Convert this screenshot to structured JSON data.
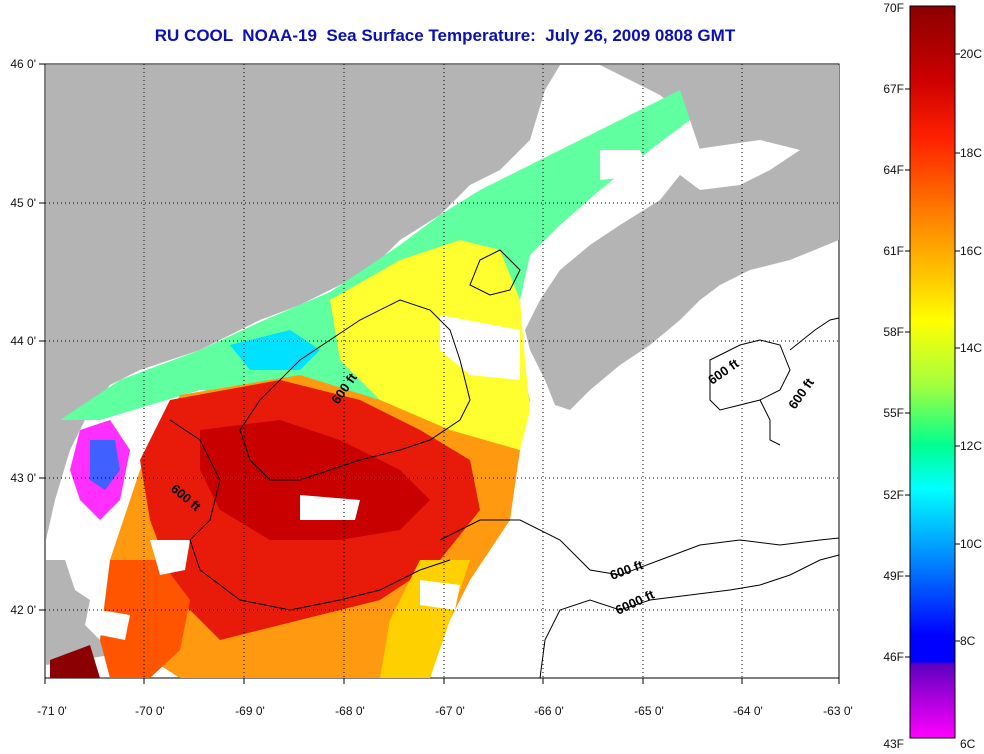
{
  "title": "RU COOL  NOAA-19  Sea Surface Temperature:  July 26, 2009 0808 GMT",
  "map": {
    "lon_ticks": [
      "-71 0'",
      "-70 0'",
      "-69 0'",
      "-68 0'",
      "-67 0'",
      "-66 0'",
      "-65 0'",
      "-64 0'",
      "-63 0'"
    ],
    "lat_ticks": [
      "46 0'",
      "45 0'",
      "44 0'",
      "43 0'",
      "42 0'"
    ],
    "contour_labels": [
      "600 ft",
      "600 ft",
      "600 ft",
      "600 ft",
      "6000 ft",
      "600 ft"
    ]
  },
  "colorbar": {
    "fahrenheit_labels": [
      "70F",
      "67F",
      "64F",
      "61F",
      "58F",
      "55F",
      "52F",
      "49F",
      "46F",
      "43F"
    ],
    "celsius_labels": [
      "20C",
      "18C",
      "16C",
      "14C",
      "12C",
      "10C",
      "8C",
      "6C"
    ]
  },
  "colors": {
    "land": "#b4b4b4",
    "cloud": "#ffffff",
    "title": "#0a10b4"
  }
}
